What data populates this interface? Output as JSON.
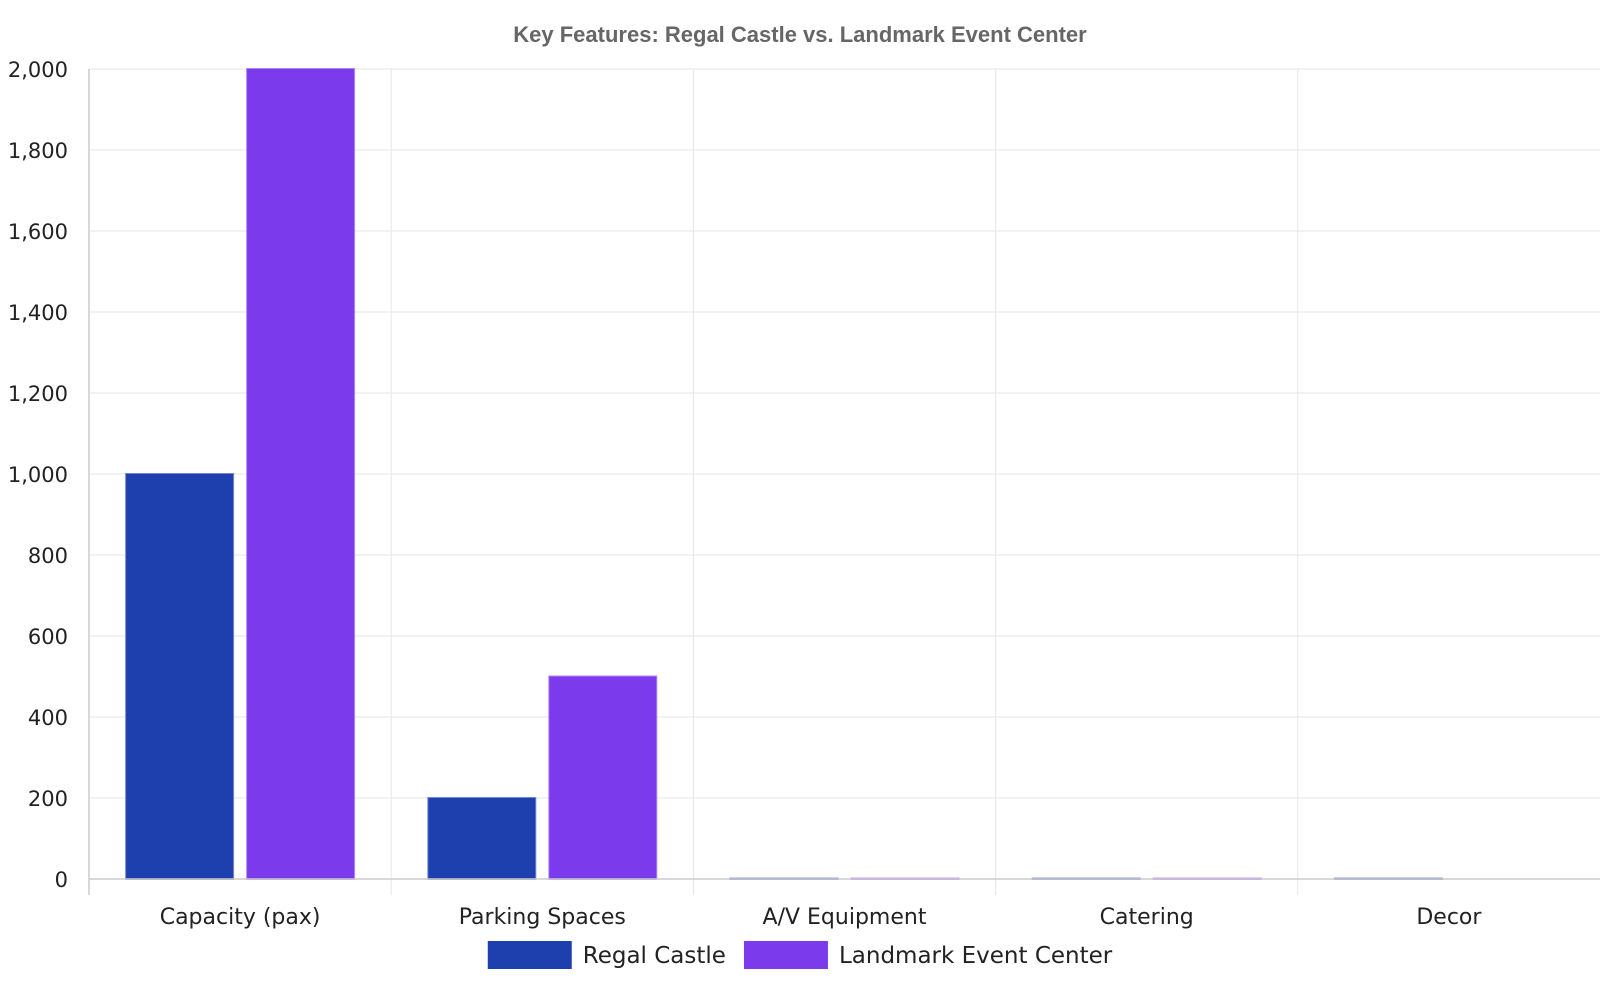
{
  "chart_data": {
    "type": "bar",
    "title": "Key Features: Regal Castle vs. Landmark Event Center",
    "xlabel": "",
    "ylabel": "",
    "categories": [
      "Capacity (pax)",
      "Parking Spaces",
      "A/V Equipment",
      "Catering",
      "Decor"
    ],
    "series": [
      {
        "name": "Regal Castle",
        "color": "#1e40af",
        "values": [
          1000,
          200,
          1,
          1,
          1
        ]
      },
      {
        "name": "Landmark Event Center",
        "color": "#7c3aed",
        "values": [
          2000,
          500,
          1,
          1,
          0
        ]
      }
    ],
    "ylim": [
      0,
      2000
    ],
    "yticks": [
      0,
      200,
      400,
      600,
      800,
      1000,
      1200,
      1400,
      1600,
      1800,
      2000
    ],
    "ytick_labels": [
      "0",
      "200",
      "400",
      "600",
      "800",
      "1,000",
      "1,200",
      "1,400",
      "1,600",
      "1,800",
      "2,000"
    ],
    "grid": true,
    "legend_position": "bottom-center"
  }
}
